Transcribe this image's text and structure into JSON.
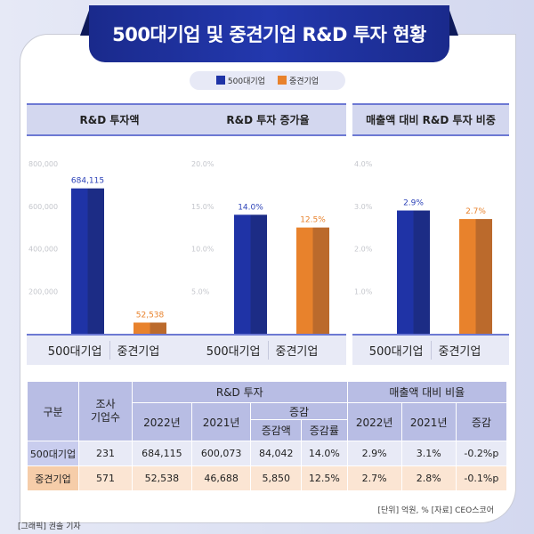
{
  "title": "500대기업 및 중견기업 R&D 투자 현황",
  "legend": [
    {
      "name": "500대기업",
      "color": "#1f33a6"
    },
    {
      "name": "중견기업",
      "color": "#e8822c"
    }
  ],
  "chart_data": [
    {
      "type": "bar",
      "title": "R&D 투자액",
      "categories": [
        "500대기업",
        "중견기업"
      ],
      "values": [
        684115,
        52538
      ],
      "value_labels": [
        "684,115",
        "52,538"
      ],
      "ylim": [
        0,
        800000
      ],
      "ticks": [
        "800,000",
        "600,000",
        "400,000",
        "200,000"
      ],
      "tick_values": [
        800000,
        600000,
        400000,
        200000
      ]
    },
    {
      "type": "bar",
      "title": "R&D 투자 증가율",
      "categories": [
        "500대기업",
        "중견기업"
      ],
      "values": [
        14.0,
        12.5
      ],
      "value_labels": [
        "14.0%",
        "12.5%"
      ],
      "ylim": [
        0,
        20
      ],
      "ticks": [
        "20.0%",
        "15.0%",
        "10.0%",
        "5.0%"
      ],
      "tick_values": [
        20,
        15,
        10,
        5
      ]
    },
    {
      "type": "bar",
      "title": "매출액 대비 R&D 투자 비중",
      "categories": [
        "500대기업",
        "중견기업"
      ],
      "values": [
        2.9,
        2.7
      ],
      "value_labels": [
        "2.9%",
        "2.7%"
      ],
      "ylim": [
        0,
        4
      ],
      "ticks": [
        "4.0%",
        "3.0%",
        "2.0%",
        "1.0%"
      ],
      "tick_values": [
        4,
        3,
        2,
        1
      ]
    }
  ],
  "table": {
    "h_group": "구분",
    "h_count": "조사\n기업수",
    "h_rd": "R&D 투자",
    "h_ratio": "매출액 대비 비율",
    "h_2022": "2022년",
    "h_2021": "2021년",
    "h_change": "증감",
    "h_amt": "증감액",
    "h_rate": "증감률",
    "rows": [
      [
        "500대기업",
        "231",
        "684,115",
        "600,073",
        "84,042",
        "14.0%",
        "2.9%",
        "3.1%",
        "-0.2%p"
      ],
      [
        "중견기업",
        "571",
        "52,538",
        "46,688",
        "5,850",
        "12.5%",
        "2.7%",
        "2.8%",
        "-0.1%p"
      ]
    ]
  },
  "note": "[단위] 억원, %   [자료] CEO스코어",
  "credit": "[그래픽] 권솔 기자"
}
